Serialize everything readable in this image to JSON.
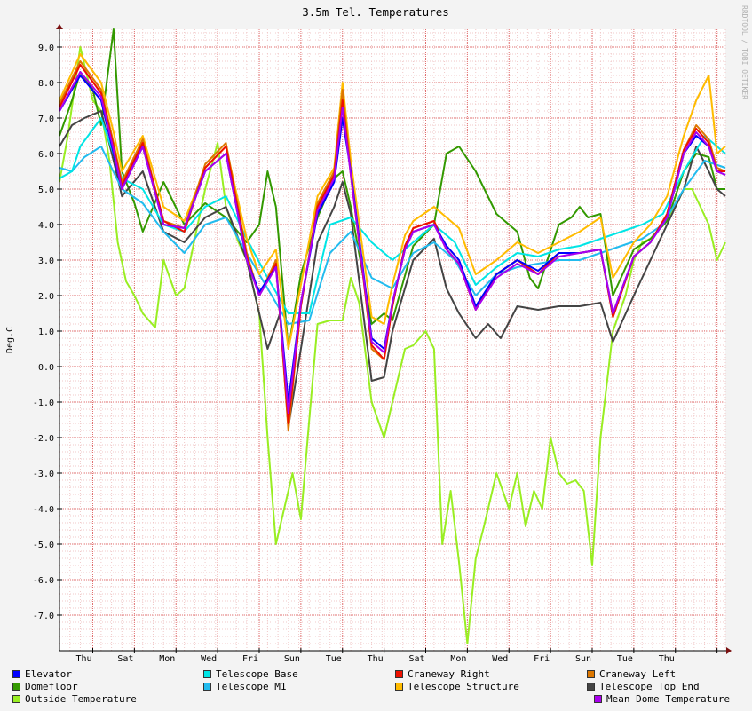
{
  "chart_data": {
    "type": "line",
    "title": "3.5m Tel. Temperatures",
    "ylabel": "Deg.C",
    "xlabel": "",
    "watermark": "RRDTOOL / TOBI OETIKER",
    "ylim": [
      -8.0,
      9.5
    ],
    "yticks": [
      "9.0",
      "8.0",
      "7.0",
      "6.0",
      "5.0",
      "4.0",
      "3.0",
      "2.0",
      "1.0",
      "0.0",
      "-1.0",
      "-2.0",
      "-3.0",
      "-4.0",
      "-5.0",
      "-6.0",
      "-7.0"
    ],
    "yticks_values": [
      9,
      8,
      7,
      6,
      5,
      4,
      3,
      2,
      1,
      0,
      -1,
      -2,
      -3,
      -4,
      -5,
      -6,
      -7
    ],
    "x_unit": "days",
    "xlim": [
      0,
      16
    ],
    "x_major": [
      0.8,
      1.8,
      2.8,
      3.8,
      4.8,
      5.8,
      6.8,
      7.8,
      8.8,
      9.8,
      10.8,
      11.8,
      12.8,
      13.8,
      14.8,
      15.8
    ],
    "x_minor_step": 0.25,
    "categories": [
      "Thu",
      "Sat",
      "Mon",
      "Wed",
      "Fri",
      "Sun",
      "Tue",
      "Thu",
      "Sat",
      "Mon",
      "Wed",
      "Fri",
      "Sun",
      "Tue",
      "Thu"
    ],
    "category_positions": [
      0.8,
      1.8,
      2.8,
      3.8,
      4.8,
      5.8,
      6.8,
      7.8,
      8.8,
      9.8,
      10.8,
      11.8,
      12.8,
      13.8,
      14.8
    ],
    "grid": true,
    "legend_position": "bottom",
    "series": [
      {
        "name": "Elevator",
        "color": "#0000ff",
        "x": [
          0,
          0.5,
          1,
          1.3,
          1.5,
          2,
          2.5,
          3,
          3.5,
          4,
          4.5,
          4.8,
          5.2,
          5.5,
          5.8,
          6.2,
          6.6,
          6.8,
          7,
          7.5,
          7.8,
          8,
          8.3,
          8.5,
          9,
          9.3,
          9.6,
          10,
          10.5,
          11,
          11.5,
          12,
          12.5,
          13,
          13.3,
          13.8,
          14.2,
          14.6,
          15,
          15.3,
          15.6,
          15.8,
          16
        ],
        "y": [
          7.2,
          8.2,
          7.5,
          6.0,
          5.0,
          6.2,
          4.0,
          3.9,
          5.5,
          6.0,
          3.0,
          2.1,
          2.8,
          -1.0,
          1.8,
          4.3,
          5.2,
          7.0,
          5.5,
          0.8,
          0.5,
          1.8,
          3.3,
          3.8,
          4.0,
          3.4,
          3.0,
          1.7,
          2.6,
          3.0,
          2.7,
          3.2,
          3.2,
          3.3,
          1.5,
          3.1,
          3.5,
          4.2,
          6.0,
          6.5,
          6.2,
          5.5,
          5.4
        ]
      },
      {
        "name": "Domefloor",
        "color": "#339900",
        "x": [
          0,
          0.3,
          0.5,
          0.8,
          1,
          1.3,
          1.5,
          1.8,
          2,
          2.5,
          3,
          3.5,
          4,
          4.5,
          4.8,
          5,
          5.2,
          5.5,
          5.8,
          6.2,
          6.6,
          6.8,
          7,
          7.5,
          7.8,
          8,
          8.5,
          9,
          9.3,
          9.6,
          10,
          10.5,
          11,
          11.3,
          11.5,
          12,
          12.3,
          12.5,
          12.7,
          13,
          13.3,
          13.8,
          14.2,
          14.6,
          15,
          15.3,
          15.6,
          15.8,
          16
        ],
        "y": [
          6.5,
          7.5,
          8.3,
          7.8,
          6.8,
          9.5,
          5.5,
          4.6,
          3.8,
          5.2,
          4.0,
          4.6,
          4.2,
          3.5,
          4.0,
          5.5,
          4.5,
          0.5,
          2.6,
          4.2,
          5.3,
          5.5,
          4.5,
          1.2,
          1.5,
          1.3,
          3.4,
          4.0,
          6.0,
          6.2,
          5.5,
          4.3,
          3.8,
          2.5,
          2.2,
          4.0,
          4.2,
          4.5,
          4.2,
          4.3,
          2.0,
          3.3,
          3.6,
          4.1,
          5.5,
          6.0,
          5.9,
          5.0,
          5.0
        ]
      },
      {
        "name": "Outside Temperature",
        "color": "#99ee22",
        "x": [
          0,
          0.2,
          0.5,
          0.8,
          1,
          1.2,
          1.4,
          1.6,
          1.8,
          2,
          2.3,
          2.5,
          2.8,
          3,
          3.5,
          3.8,
          4,
          4.3,
          4.5,
          4.8,
          5,
          5.2,
          5.4,
          5.6,
          5.8,
          6,
          6.2,
          6.5,
          6.8,
          7,
          7.2,
          7.5,
          7.8,
          8,
          8.3,
          8.5,
          8.8,
          9,
          9.2,
          9.4,
          9.6,
          9.8,
          10,
          10.2,
          10.5,
          10.8,
          11,
          11.2,
          11.4,
          11.6,
          11.8,
          12,
          12.2,
          12.4,
          12.6,
          12.8,
          13,
          13.3,
          13.6,
          13.8,
          14,
          14.2,
          14.5,
          14.8,
          15,
          15.2,
          15.4,
          15.6,
          15.8,
          16
        ],
        "y": [
          5.2,
          6.5,
          9.0,
          7.5,
          7.2,
          5.8,
          3.5,
          2.4,
          2.0,
          1.5,
          1.1,
          3.0,
          2.0,
          2.2,
          5.0,
          6.3,
          4.5,
          3.5,
          3.0,
          1.5,
          -2.0,
          -5.0,
          -4.0,
          -3.0,
          -4.3,
          -1.5,
          1.2,
          1.3,
          1.3,
          2.5,
          1.8,
          -1.0,
          -2.0,
          -1.0,
          0.5,
          0.6,
          1.0,
          0.5,
          -5.0,
          -3.5,
          -5.5,
          -7.8,
          -5.4,
          -4.5,
          -3.0,
          -4.0,
          -3.0,
          -4.5,
          -3.5,
          -4.0,
          -2.0,
          -3.0,
          -3.3,
          -3.2,
          -3.5,
          -5.6,
          -2.0,
          1.0,
          2.0,
          3.0,
          3.5,
          3.6,
          4.0,
          4.5,
          5.0,
          5.0,
          4.5,
          4.0,
          3.0,
          3.5
        ]
      },
      {
        "name": "Telescope Base",
        "color": "#00e5e5",
        "x": [
          0,
          0.3,
          0.5,
          1,
          1.5,
          2,
          2.5,
          3,
          3.5,
          4,
          4.5,
          5,
          5.5,
          6,
          6.5,
          7,
          7.5,
          8,
          8.5,
          9,
          9.5,
          10,
          10.5,
          11,
          11.5,
          12,
          12.5,
          13,
          13.5,
          14,
          14.5,
          15,
          15.5,
          16
        ],
        "y": [
          5.3,
          5.5,
          6.2,
          7.0,
          5.3,
          5.0,
          4.0,
          3.8,
          4.5,
          4.8,
          3.6,
          2.5,
          1.5,
          1.5,
          4.0,
          4.2,
          3.5,
          3.0,
          3.5,
          4.0,
          3.5,
          2.3,
          2.8,
          3.2,
          3.1,
          3.3,
          3.4,
          3.6,
          3.8,
          4.0,
          4.3,
          5.5,
          6.5,
          6.0
        ]
      },
      {
        "name": "Telescope M1",
        "color": "#22bbee",
        "x": [
          0,
          0.3,
          0.6,
          1,
          1.5,
          2,
          2.5,
          3,
          3.5,
          4,
          4.5,
          5,
          5.5,
          6,
          6.5,
          7,
          7.5,
          8,
          8.5,
          9,
          9.5,
          10,
          10.5,
          11,
          11.5,
          12,
          12.5,
          13,
          13.5,
          14,
          14.5,
          15,
          15.5,
          16
        ],
        "y": [
          5.6,
          5.5,
          5.9,
          6.2,
          5.0,
          4.6,
          3.8,
          3.2,
          4.0,
          4.2,
          3.2,
          2.2,
          1.2,
          1.3,
          3.2,
          3.8,
          2.5,
          2.2,
          3.2,
          3.5,
          3.0,
          2.0,
          2.6,
          2.8,
          2.9,
          3.0,
          3.0,
          3.2,
          3.4,
          3.6,
          4.0,
          5.0,
          5.8,
          5.6
        ]
      },
      {
        "name": "Craneway Right",
        "color": "#ee1100",
        "x": [
          0,
          0.5,
          1,
          1.3,
          1.5,
          2,
          2.5,
          3,
          3.5,
          4,
          4.5,
          4.8,
          5.2,
          5.5,
          5.8,
          6.2,
          6.6,
          6.8,
          7,
          7.5,
          7.8,
          8,
          8.3,
          8.5,
          9,
          9.3,
          9.6,
          10,
          10.5,
          11,
          11.5,
          12,
          12.5,
          13,
          13.3,
          13.8,
          14.2,
          14.6,
          15,
          15.3,
          15.6,
          15.8,
          16
        ],
        "y": [
          7.3,
          8.5,
          7.7,
          6.2,
          5.1,
          6.3,
          4.1,
          3.8,
          5.6,
          6.2,
          3.1,
          2.0,
          2.9,
          -1.6,
          1.7,
          4.5,
          5.4,
          7.5,
          5.4,
          0.6,
          0.2,
          1.7,
          3.4,
          3.9,
          4.1,
          3.3,
          2.9,
          1.6,
          2.6,
          3.0,
          2.6,
          3.2,
          3.2,
          3.3,
          1.4,
          3.1,
          3.5,
          4.3,
          6.1,
          6.7,
          6.3,
          5.5,
          5.5
        ]
      },
      {
        "name": "Telescope Structure",
        "color": "#ffbb00",
        "x": [
          0,
          0.5,
          1,
          1.3,
          1.5,
          2,
          2.5,
          3,
          3.5,
          4,
          4.5,
          4.8,
          5.2,
          5.5,
          5.8,
          6.2,
          6.6,
          6.8,
          7,
          7.5,
          7.8,
          8,
          8.3,
          8.5,
          9,
          9.3,
          9.6,
          10,
          10.5,
          11,
          11.5,
          12,
          12.5,
          13,
          13.3,
          13.8,
          14.2,
          14.6,
          15,
          15.3,
          15.6,
          15.8,
          16
        ],
        "y": [
          7.5,
          8.8,
          8.0,
          6.6,
          5.5,
          6.5,
          4.5,
          4.1,
          5.6,
          6.2,
          3.6,
          2.6,
          3.3,
          0.5,
          2.3,
          4.8,
          5.6,
          8.0,
          5.8,
          1.4,
          1.2,
          2.3,
          3.7,
          4.1,
          4.5,
          4.2,
          3.9,
          2.6,
          3.0,
          3.5,
          3.2,
          3.5,
          3.8,
          4.2,
          2.5,
          3.5,
          4.0,
          4.8,
          6.5,
          7.5,
          8.2,
          6.0,
          6.2
        ]
      },
      {
        "name": "Craneway Left",
        "color": "#dd7700",
        "x": [
          0,
          0.5,
          1,
          1.3,
          1.5,
          2,
          2.5,
          3,
          3.5,
          4,
          4.5,
          4.8,
          5.2,
          5.5,
          5.8,
          6.2,
          6.6,
          6.8,
          7,
          7.5,
          7.8,
          8,
          8.3,
          8.5,
          9,
          9.3,
          9.6,
          10,
          10.5,
          11,
          11.5,
          12,
          12.5,
          13,
          13.3,
          13.8,
          14.2,
          14.6,
          15,
          15.3,
          15.6,
          15.8,
          16
        ],
        "y": [
          7.4,
          8.6,
          7.8,
          6.3,
          5.2,
          6.4,
          4.1,
          3.9,
          5.7,
          6.3,
          3.2,
          2.0,
          3.0,
          -1.8,
          1.7,
          4.6,
          5.5,
          7.8,
          5.5,
          0.5,
          0.2,
          1.7,
          3.4,
          3.9,
          4.1,
          3.3,
          2.9,
          1.6,
          2.6,
          3.0,
          2.6,
          3.2,
          3.2,
          3.3,
          1.4,
          3.1,
          3.5,
          4.3,
          6.1,
          6.8,
          6.4,
          5.6,
          5.5
        ]
      },
      {
        "name": "Telescope Top End",
        "color": "#444444",
        "x": [
          0,
          0.3,
          0.6,
          1,
          1.3,
          1.5,
          2,
          2.5,
          3,
          3.5,
          4,
          4.5,
          4.8,
          5,
          5.3,
          5.5,
          5.8,
          6.2,
          6.6,
          6.8,
          7,
          7.5,
          7.8,
          8,
          8.5,
          9,
          9.3,
          9.6,
          10,
          10.3,
          10.6,
          11,
          11.5,
          12,
          12.5,
          13,
          13.3,
          13.8,
          14.2,
          14.6,
          15,
          15.3,
          15.6,
          15.8,
          16
        ],
        "y": [
          6.2,
          6.8,
          7.0,
          7.2,
          5.8,
          4.8,
          5.5,
          3.8,
          3.5,
          4.2,
          4.5,
          3.0,
          1.5,
          0.5,
          1.5,
          -1.7,
          0.5,
          3.5,
          4.5,
          5.2,
          4.3,
          -0.4,
          -0.3,
          1.0,
          3.0,
          3.6,
          2.2,
          1.5,
          0.8,
          1.2,
          0.8,
          1.7,
          1.6,
          1.7,
          1.7,
          1.8,
          0.7,
          2.0,
          3.0,
          4.0,
          5.0,
          6.2,
          5.5,
          5.0,
          4.8
        ]
      },
      {
        "name": "Mean Dome Temperature",
        "color": "#aa00ee",
        "x": [
          0,
          0.5,
          1,
          1.3,
          1.5,
          2,
          2.5,
          3,
          3.5,
          4,
          4.5,
          4.8,
          5.2,
          5.5,
          5.8,
          6.2,
          6.6,
          6.8,
          7,
          7.5,
          7.8,
          8,
          8.3,
          8.5,
          9,
          9.3,
          9.6,
          10,
          10.5,
          11,
          11.5,
          12,
          12.5,
          13,
          13.3,
          13.8,
          14.2,
          14.6,
          15,
          15.3,
          15.6,
          15.8,
          16
        ],
        "y": [
          7.2,
          8.3,
          7.6,
          6.1,
          5.0,
          6.2,
          4.0,
          3.9,
          5.5,
          6.0,
          3.0,
          2.0,
          2.8,
          -1.3,
          1.8,
          4.4,
          5.3,
          7.3,
          5.4,
          0.7,
          0.4,
          1.8,
          3.3,
          3.8,
          4.0,
          3.3,
          2.9,
          1.6,
          2.5,
          2.9,
          2.6,
          3.1,
          3.2,
          3.3,
          1.5,
          3.1,
          3.5,
          4.2,
          6.0,
          6.6,
          6.2,
          5.5,
          5.4
        ]
      }
    ],
    "legend_order": [
      "Elevator",
      "Telescope Base",
      "Craneway Right",
      "Craneway Left",
      "Domefloor",
      "Telescope M1",
      "Telescope Structure",
      "Telescope Top End",
      "Outside Temperature",
      "Mean Dome Temperature"
    ]
  }
}
